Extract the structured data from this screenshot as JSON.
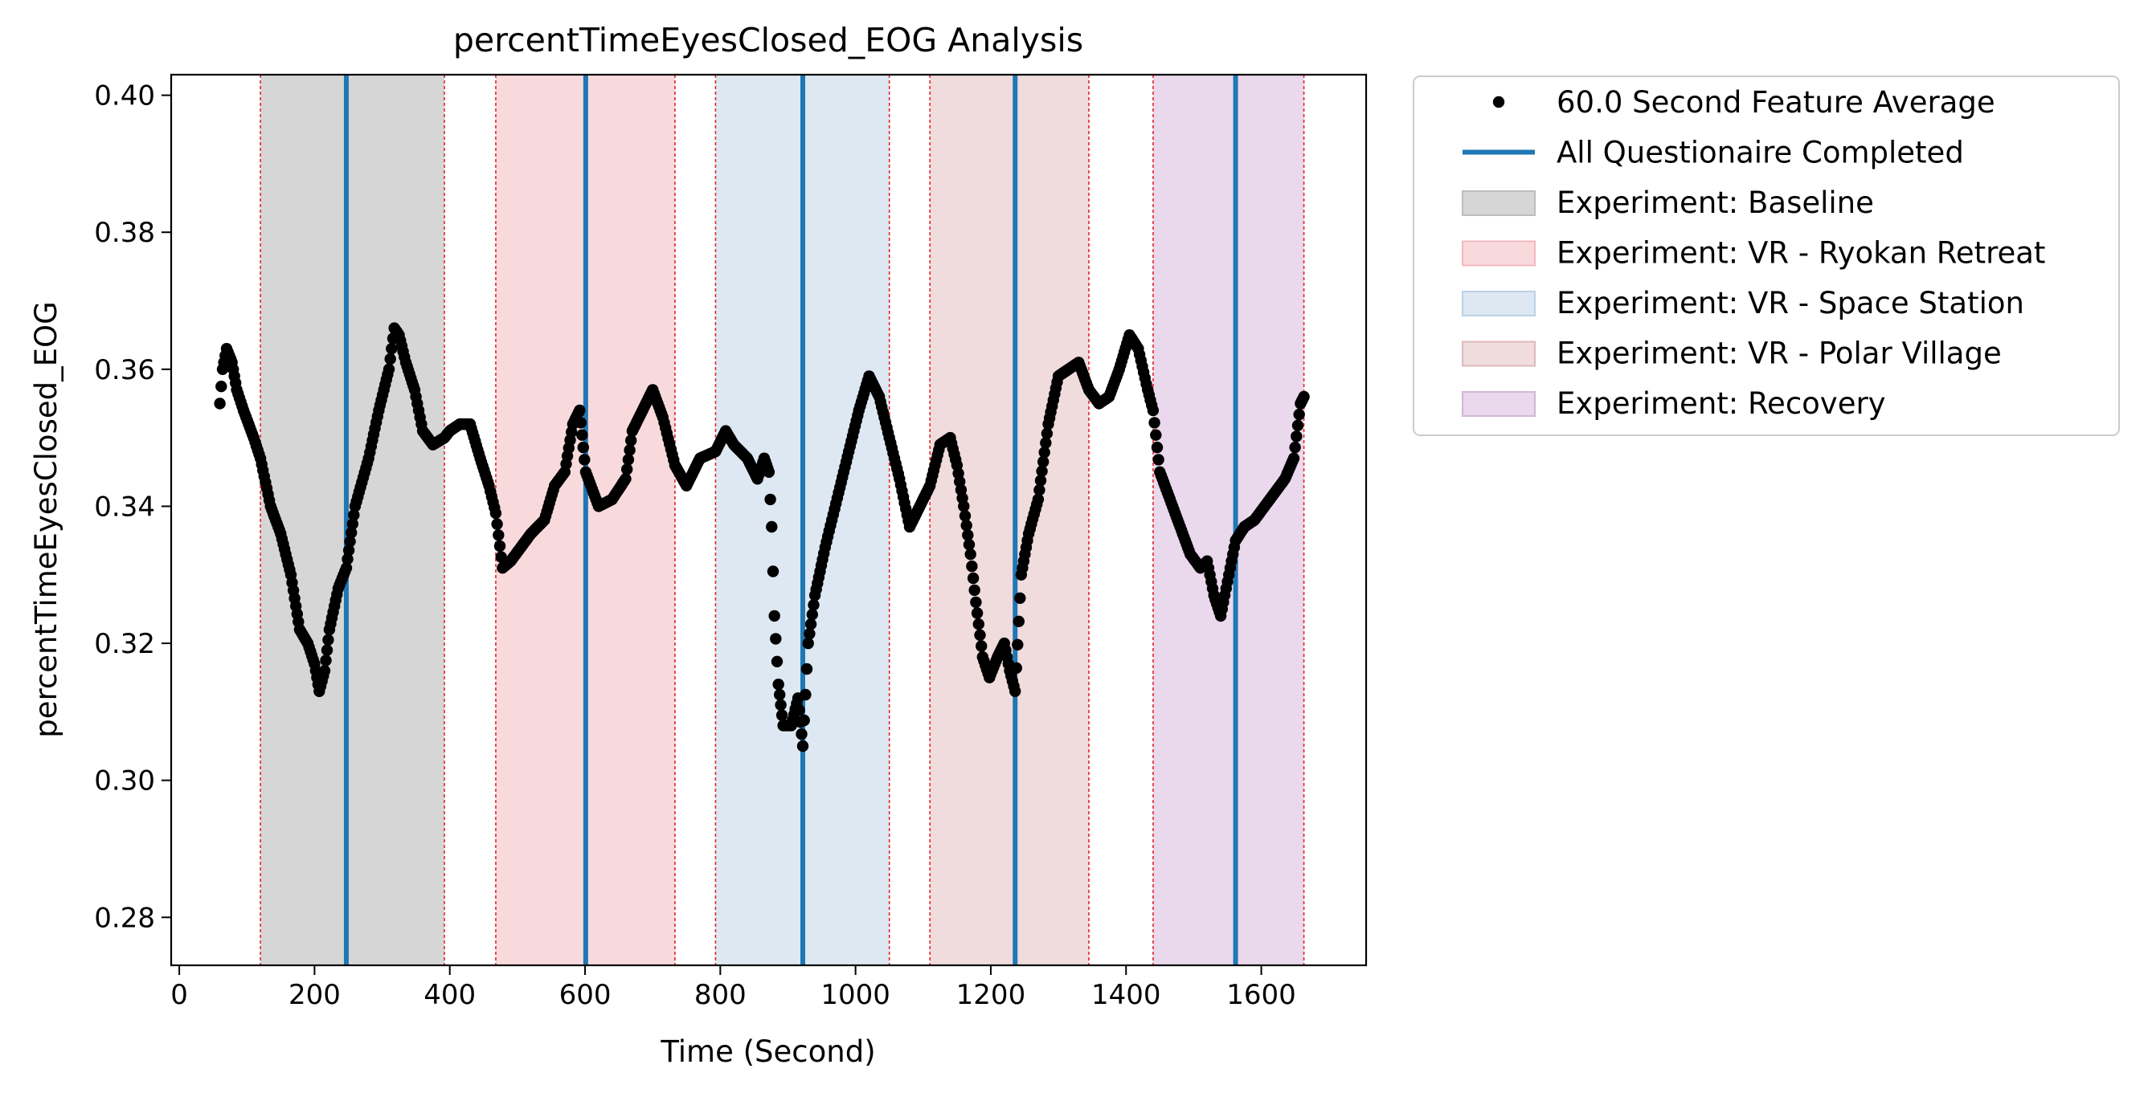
{
  "chart_data": {
    "type": "scatter",
    "title": "percentTimeEyesClosed_EOG Analysis",
    "xlabel": "Time (Second)",
    "ylabel": "percentTimeEyesClosed_EOG",
    "xlim": [
      -12,
      1755
    ],
    "ylim": [
      0.273,
      0.403
    ],
    "x_ticks": [
      0,
      200,
      400,
      600,
      800,
      1000,
      1200,
      1400,
      1600
    ],
    "x_tick_labels": [
      "0",
      "200",
      "400",
      "600",
      "800",
      "1000",
      "1200",
      "1400",
      "1600"
    ],
    "y_ticks": [
      0.28,
      0.3,
      0.32,
      0.34,
      0.36,
      0.38,
      0.4
    ],
    "y_tick_labels": [
      "0.28",
      "0.30",
      "0.32",
      "0.34",
      "0.36",
      "0.38",
      "0.40"
    ],
    "grid": false,
    "legend_position": "outside-right",
    "phases": [
      {
        "label": "Experiment: Baseline",
        "start": 120,
        "end": 392,
        "color": "#d6d6d6"
      },
      {
        "label": "Experiment: VR - Ryokan Retreat",
        "start": 468,
        "end": 733,
        "color": "#f8dadd"
      },
      {
        "label": "Experiment: VR - Space Station",
        "start": 793,
        "end": 1050,
        "color": "#dde8f2"
      },
      {
        "label": "Experiment: VR - Polar Village",
        "start": 1110,
        "end": 1345,
        "color": "#f0dcdc"
      },
      {
        "label": "Experiment: Recovery",
        "start": 1440,
        "end": 1663,
        "color": "#ead8ec"
      }
    ],
    "questionnaire_completed": {
      "label": "All Questionaire Completed",
      "color": "#1f77b4",
      "x": [
        247,
        601,
        922,
        1236,
        1562
      ]
    },
    "series": [
      {
        "name": "60.0 Second Feature Average",
        "color": "#000000",
        "marker": "circle",
        "anchors": [
          [
            60,
            0.355
          ],
          [
            64,
            0.36
          ],
          [
            70,
            0.363
          ],
          [
            78,
            0.361
          ],
          [
            85,
            0.357
          ],
          [
            95,
            0.354
          ],
          [
            110,
            0.35
          ],
          [
            120,
            0.347
          ],
          [
            135,
            0.34
          ],
          [
            150,
            0.336
          ],
          [
            165,
            0.33
          ],
          [
            178,
            0.322
          ],
          [
            190,
            0.32
          ],
          [
            200,
            0.317
          ],
          [
            207,
            0.313
          ],
          [
            215,
            0.316
          ],
          [
            222,
            0.322
          ],
          [
            235,
            0.328
          ],
          [
            247,
            0.331
          ],
          [
            260,
            0.34
          ],
          [
            280,
            0.347
          ],
          [
            295,
            0.354
          ],
          [
            310,
            0.36
          ],
          [
            318,
            0.366
          ],
          [
            325,
            0.365
          ],
          [
            335,
            0.361
          ],
          [
            348,
            0.357
          ],
          [
            360,
            0.351
          ],
          [
            375,
            0.349
          ],
          [
            392,
            0.35
          ],
          [
            400,
            0.351
          ],
          [
            415,
            0.352
          ],
          [
            430,
            0.352
          ],
          [
            445,
            0.347
          ],
          [
            458,
            0.343
          ],
          [
            468,
            0.339
          ],
          [
            478,
            0.331
          ],
          [
            490,
            0.332
          ],
          [
            505,
            0.334
          ],
          [
            520,
            0.336
          ],
          [
            540,
            0.338
          ],
          [
            555,
            0.343
          ],
          [
            570,
            0.345
          ],
          [
            582,
            0.352
          ],
          [
            592,
            0.354
          ],
          [
            601,
            0.345
          ],
          [
            620,
            0.34
          ],
          [
            640,
            0.341
          ],
          [
            660,
            0.344
          ],
          [
            670,
            0.351
          ],
          [
            685,
            0.354
          ],
          [
            700,
            0.357
          ],
          [
            715,
            0.353
          ],
          [
            733,
            0.346
          ],
          [
            750,
            0.343
          ],
          [
            770,
            0.347
          ],
          [
            793,
            0.348
          ],
          [
            808,
            0.351
          ],
          [
            820,
            0.349
          ],
          [
            840,
            0.347
          ],
          [
            855,
            0.344
          ],
          [
            865,
            0.347
          ],
          [
            872,
            0.345
          ],
          [
            876,
            0.337
          ],
          [
            880,
            0.324
          ],
          [
            886,
            0.314
          ],
          [
            893,
            0.308
          ],
          [
            905,
            0.308
          ],
          [
            915,
            0.312
          ],
          [
            922,
            0.305
          ],
          [
            930,
            0.32
          ],
          [
            940,
            0.327
          ],
          [
            955,
            0.334
          ],
          [
            975,
            0.342
          ],
          [
            990,
            0.348
          ],
          [
            1005,
            0.354
          ],
          [
            1020,
            0.359
          ],
          [
            1035,
            0.356
          ],
          [
            1050,
            0.35
          ],
          [
            1065,
            0.344
          ],
          [
            1080,
            0.337
          ],
          [
            1095,
            0.34
          ],
          [
            1110,
            0.343
          ],
          [
            1125,
            0.349
          ],
          [
            1140,
            0.35
          ],
          [
            1150,
            0.346
          ],
          [
            1160,
            0.34
          ],
          [
            1170,
            0.333
          ],
          [
            1178,
            0.326
          ],
          [
            1188,
            0.318
          ],
          [
            1198,
            0.315
          ],
          [
            1210,
            0.318
          ],
          [
            1220,
            0.32
          ],
          [
            1228,
            0.316
          ],
          [
            1236,
            0.313
          ],
          [
            1245,
            0.33
          ],
          [
            1256,
            0.336
          ],
          [
            1270,
            0.341
          ],
          [
            1285,
            0.352
          ],
          [
            1300,
            0.359
          ],
          [
            1315,
            0.36
          ],
          [
            1330,
            0.361
          ],
          [
            1345,
            0.357
          ],
          [
            1360,
            0.355
          ],
          [
            1375,
            0.356
          ],
          [
            1390,
            0.36
          ],
          [
            1405,
            0.365
          ],
          [
            1418,
            0.363
          ],
          [
            1432,
            0.357
          ],
          [
            1440,
            0.354
          ],
          [
            1450,
            0.345
          ],
          [
            1465,
            0.341
          ],
          [
            1480,
            0.337
          ],
          [
            1495,
            0.333
          ],
          [
            1510,
            0.331
          ],
          [
            1520,
            0.332
          ],
          [
            1530,
            0.327
          ],
          [
            1540,
            0.324
          ],
          [
            1552,
            0.33
          ],
          [
            1562,
            0.335
          ],
          [
            1575,
            0.337
          ],
          [
            1590,
            0.338
          ],
          [
            1605,
            0.34
          ],
          [
            1620,
            0.342
          ],
          [
            1635,
            0.344
          ],
          [
            1648,
            0.347
          ],
          [
            1658,
            0.355
          ],
          [
            1663,
            0.356
          ]
        ]
      }
    ],
    "legend": [
      {
        "kind": "marker",
        "label": "60.0 Second Feature Average",
        "color": "#000000"
      },
      {
        "kind": "line",
        "label": "All Questionaire Completed",
        "color": "#1f77b4"
      },
      {
        "kind": "patch",
        "label": "Experiment: Baseline",
        "color": "#d6d6d6",
        "edge": "#bdbdbd"
      },
      {
        "kind": "patch",
        "label": "Experiment: VR - Ryokan Retreat",
        "color": "#f8dadd",
        "edge": "#f2b8bf"
      },
      {
        "kind": "patch",
        "label": "Experiment: VR - Space Station",
        "color": "#dde8f2",
        "edge": "#bcd2e6"
      },
      {
        "kind": "patch",
        "label": "Experiment: VR - Polar Village",
        "color": "#f0dcdc",
        "edge": "#dfb9b9"
      },
      {
        "kind": "patch",
        "label": "Experiment: Recovery",
        "color": "#ead8ec",
        "edge": "#d3b5d8"
      }
    ]
  }
}
